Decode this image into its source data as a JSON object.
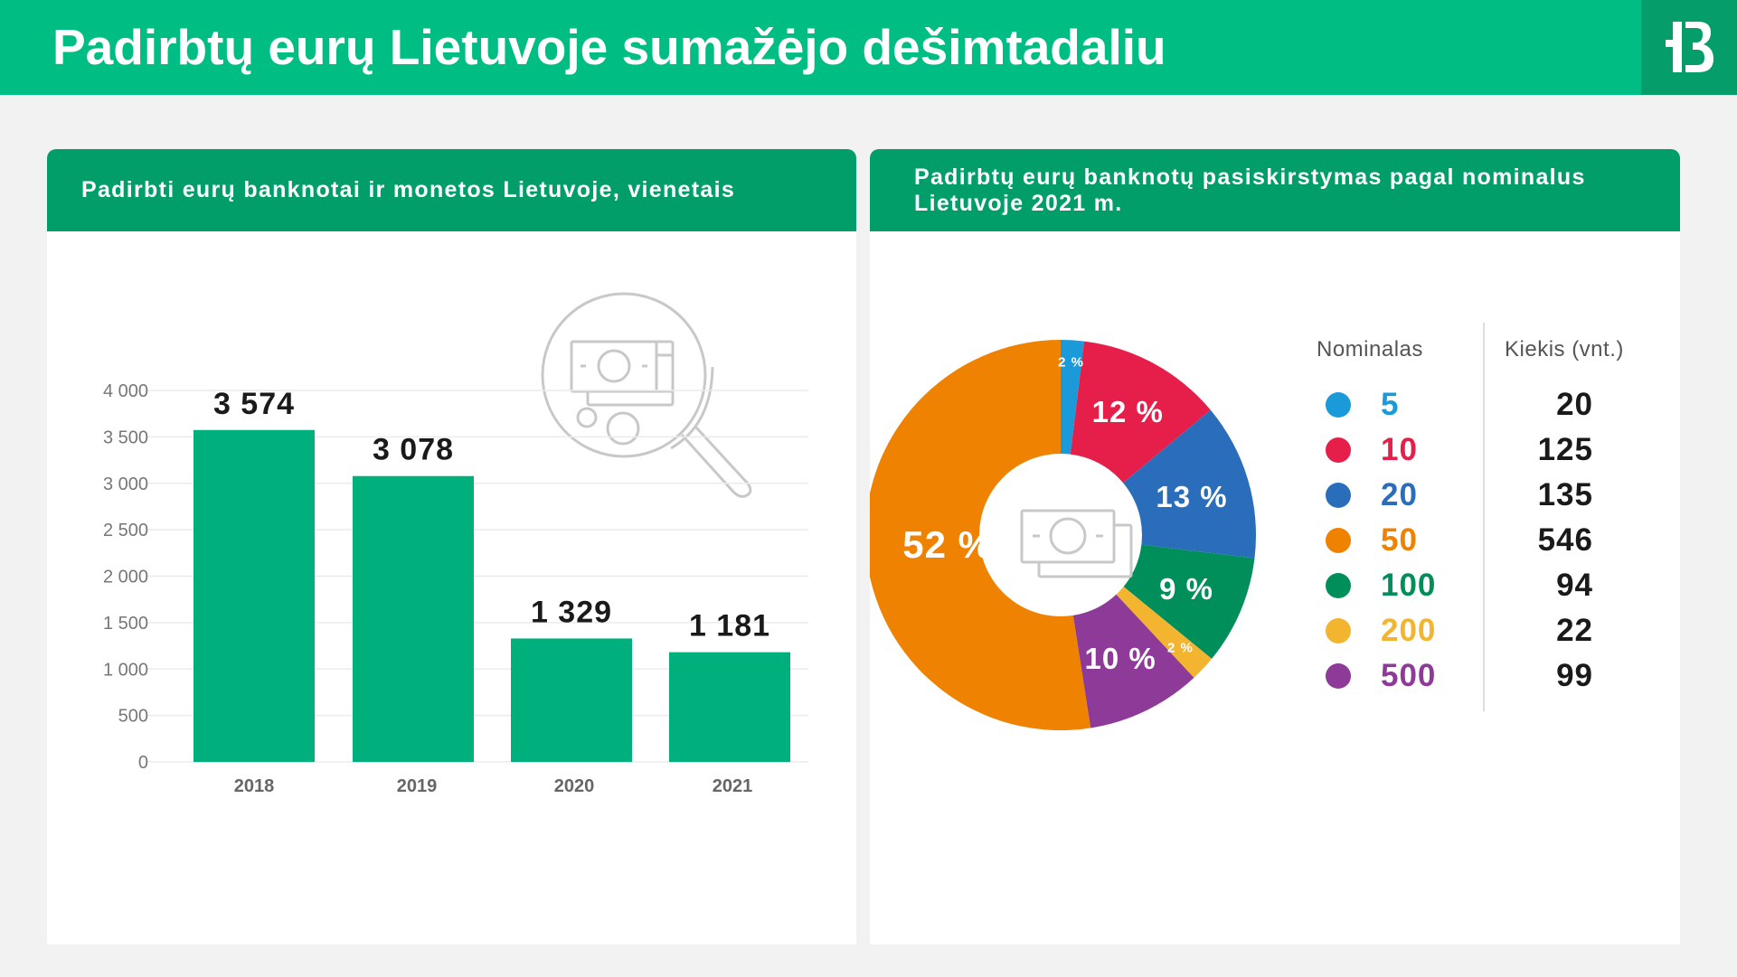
{
  "header": {
    "title": "Padirbtų eurų Lietuvoje sumažėjo dešimtadaliu",
    "logo_icon": "lb-logo-icon"
  },
  "colors": {
    "brand_green": "#00bd84",
    "header_green": "#029e69",
    "bar_green": "#00b07c"
  },
  "bar_panel": {
    "title": "Padirbti eurų banknotai ir monetos Lietuvoje, vienetais",
    "decoration_icon": "magnifier-banknote-icon"
  },
  "pie_panel": {
    "title": "Padirbtų eurų banknotų pasiskirstymas pagal nominalus Lietuvoje 2021 m.",
    "center_icon": "banknote-icon",
    "legend": {
      "nominal_header": "Nominalas",
      "quantity_header": "Kiekis (vnt.)"
    }
  },
  "chart_data": [
    {
      "type": "bar",
      "categories": [
        "2018",
        "2019",
        "2020",
        "2021"
      ],
      "values": [
        3574,
        3078,
        1329,
        1181
      ],
      "data_labels": [
        "3 574",
        "3 078",
        "1 329",
        "1 181"
      ],
      "title": "Padirbti eurų banknotai ir monetos Lietuvoje, vienetais",
      "xlabel": "",
      "ylabel": "",
      "ylim": [
        0,
        4000
      ],
      "yticks": [
        0,
        500,
        1000,
        1500,
        2000,
        2500,
        3000,
        3500,
        4000
      ],
      "ytick_labels": [
        "0",
        "500",
        "1 000",
        "1 500",
        "2 000",
        "2 500",
        "3 000",
        "3 500",
        "4 000"
      ],
      "grid": true,
      "color": "#00b07c"
    },
    {
      "type": "pie",
      "donut": true,
      "title": "Padirbtų eurų banknotų pasiskirstymas pagal nominalus Lietuvoje 2021 m.",
      "slices": [
        {
          "nominal": "5",
          "quantity": 20,
          "quantity_label": "20",
          "percent": 2,
          "percent_label": "2 %",
          "color": "#1a9ad9"
        },
        {
          "nominal": "10",
          "quantity": 125,
          "quantity_label": "125",
          "percent": 12,
          "percent_label": "12 %",
          "color": "#e51f4a"
        },
        {
          "nominal": "20",
          "quantity": 135,
          "quantity_label": "135",
          "percent": 13,
          "percent_label": "13 %",
          "color": "#2a6ebb"
        },
        {
          "nominal": "100",
          "quantity": 94,
          "quantity_label": "94",
          "percent": 9,
          "percent_label": "9 %",
          "color": "#008e5b"
        },
        {
          "nominal": "200",
          "quantity": 22,
          "quantity_label": "22",
          "percent": 2,
          "percent_label": "2 %",
          "color": "#f3b52f"
        },
        {
          "nominal": "500",
          "quantity": 99,
          "quantity_label": "99",
          "percent": 10,
          "percent_label": "10 %",
          "color": "#8e3a99"
        },
        {
          "nominal": "50",
          "quantity": 546,
          "quantity_label": "546",
          "percent": 52,
          "percent_label": "52 %",
          "color": "#ef8200"
        }
      ],
      "legend_order": [
        "5",
        "10",
        "20",
        "50",
        "100",
        "200",
        "500"
      ],
      "legend_placement": "right"
    }
  ]
}
